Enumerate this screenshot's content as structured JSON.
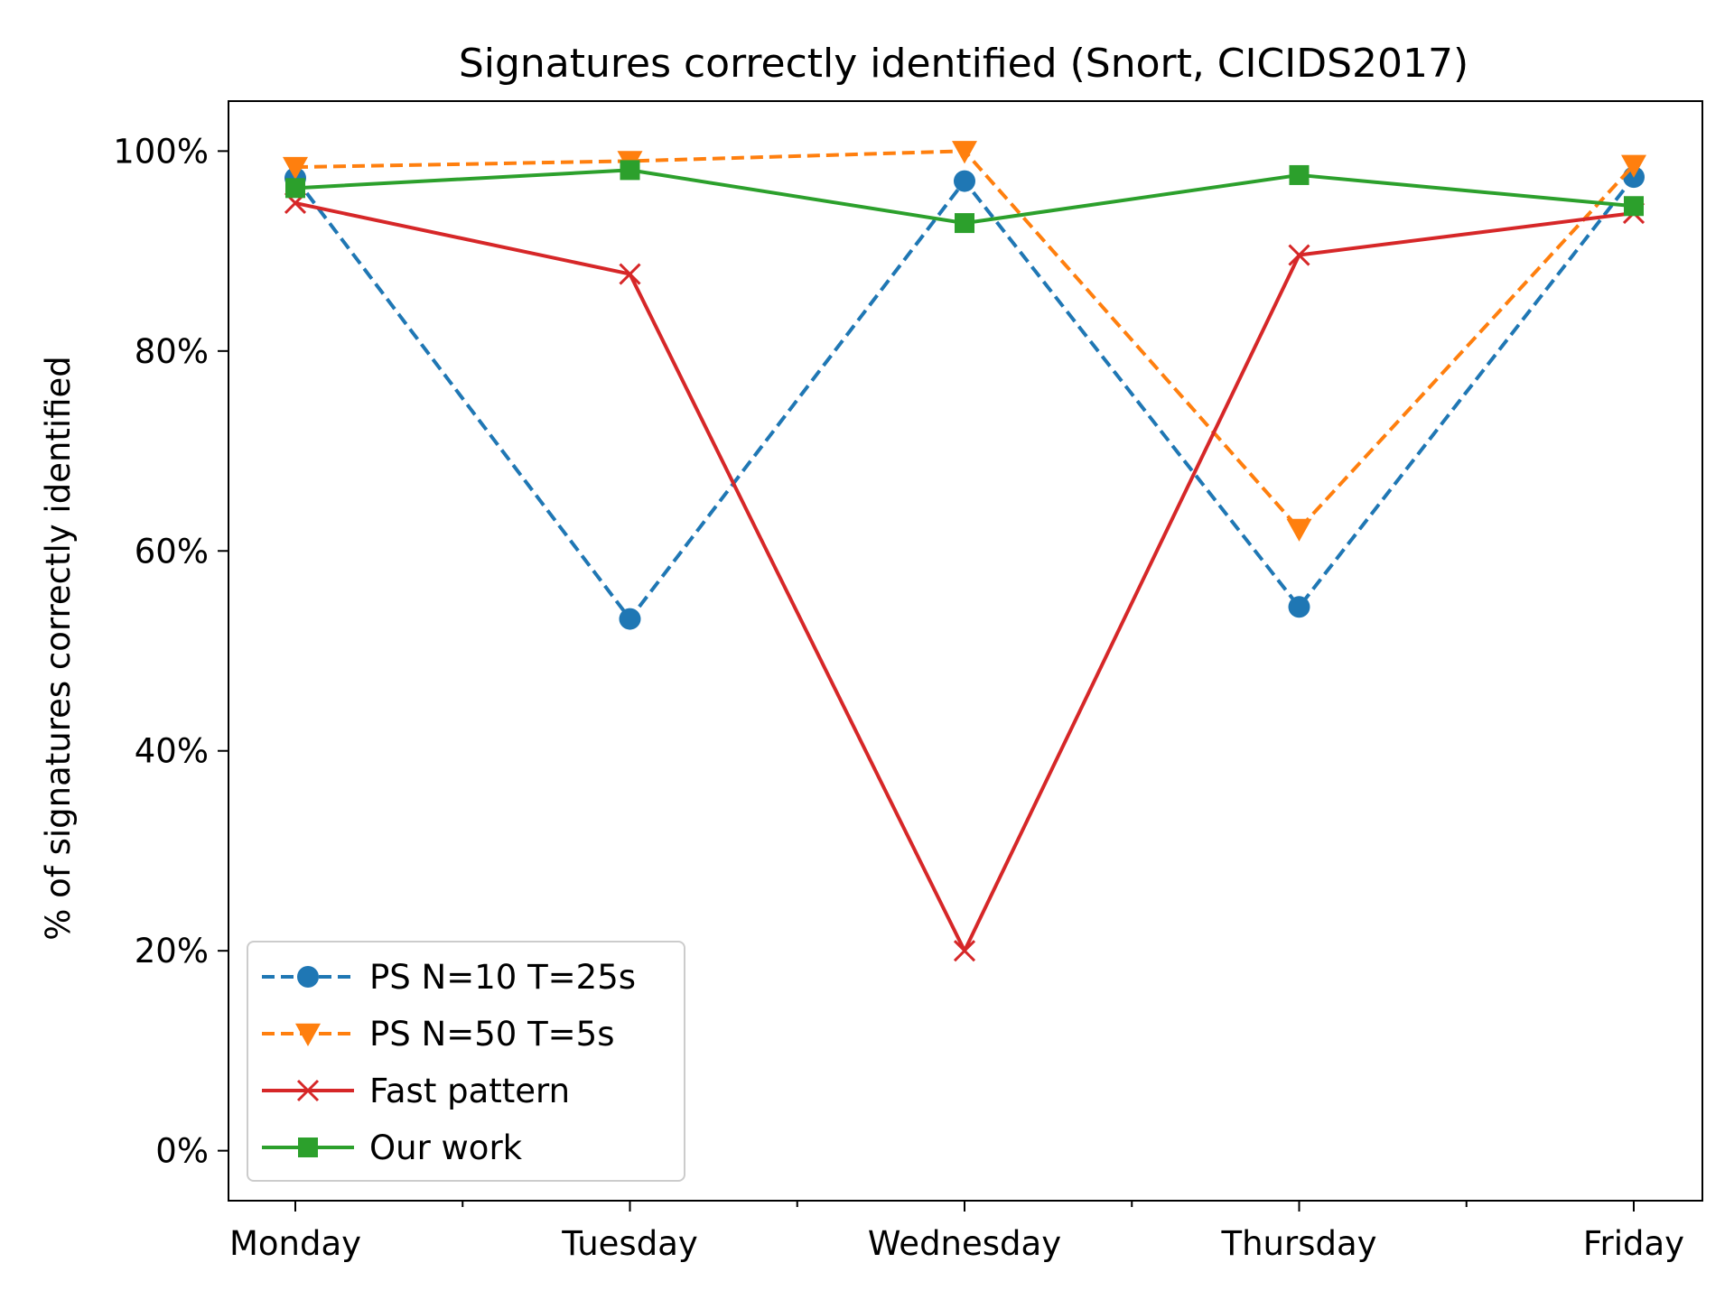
{
  "chart_data": {
    "type": "line",
    "title": "Signatures correctly identified (Snort, CICIDS2017)",
    "xlabel": "",
    "ylabel": "% of signatures correctly identified",
    "categories": [
      "Monday",
      "Tuesday",
      "Wednesday",
      "Thursday",
      "Friday"
    ],
    "ylim": [
      -5,
      105
    ],
    "yticks": [
      0,
      20,
      40,
      60,
      80,
      100
    ],
    "ytick_labels": [
      "0%",
      "20%",
      "40%",
      "60%",
      "80%",
      "100%"
    ],
    "grid": false,
    "legend_position": "lower-left",
    "series": [
      {
        "name": "PS N=10 T=25s",
        "values": [
          97.3,
          53.2,
          97.0,
          54.4,
          97.4
        ],
        "color": "#1f77b4",
        "marker": "circle",
        "dashed": true
      },
      {
        "name": "PS N=50 T=5s",
        "values": [
          98.4,
          99.0,
          100.0,
          62.2,
          98.6
        ],
        "color": "#ff7f0e",
        "marker": "triangle-down",
        "dashed": true
      },
      {
        "name": "Fast pattern",
        "values": [
          94.8,
          87.7,
          20.0,
          89.6,
          93.8
        ],
        "color": "#d62728",
        "marker": "x",
        "dashed": false
      },
      {
        "name": "Our work",
        "values": [
          96.3,
          98.1,
          92.8,
          97.6,
          94.5
        ],
        "color": "#2ca02c",
        "marker": "square",
        "dashed": false
      }
    ]
  }
}
